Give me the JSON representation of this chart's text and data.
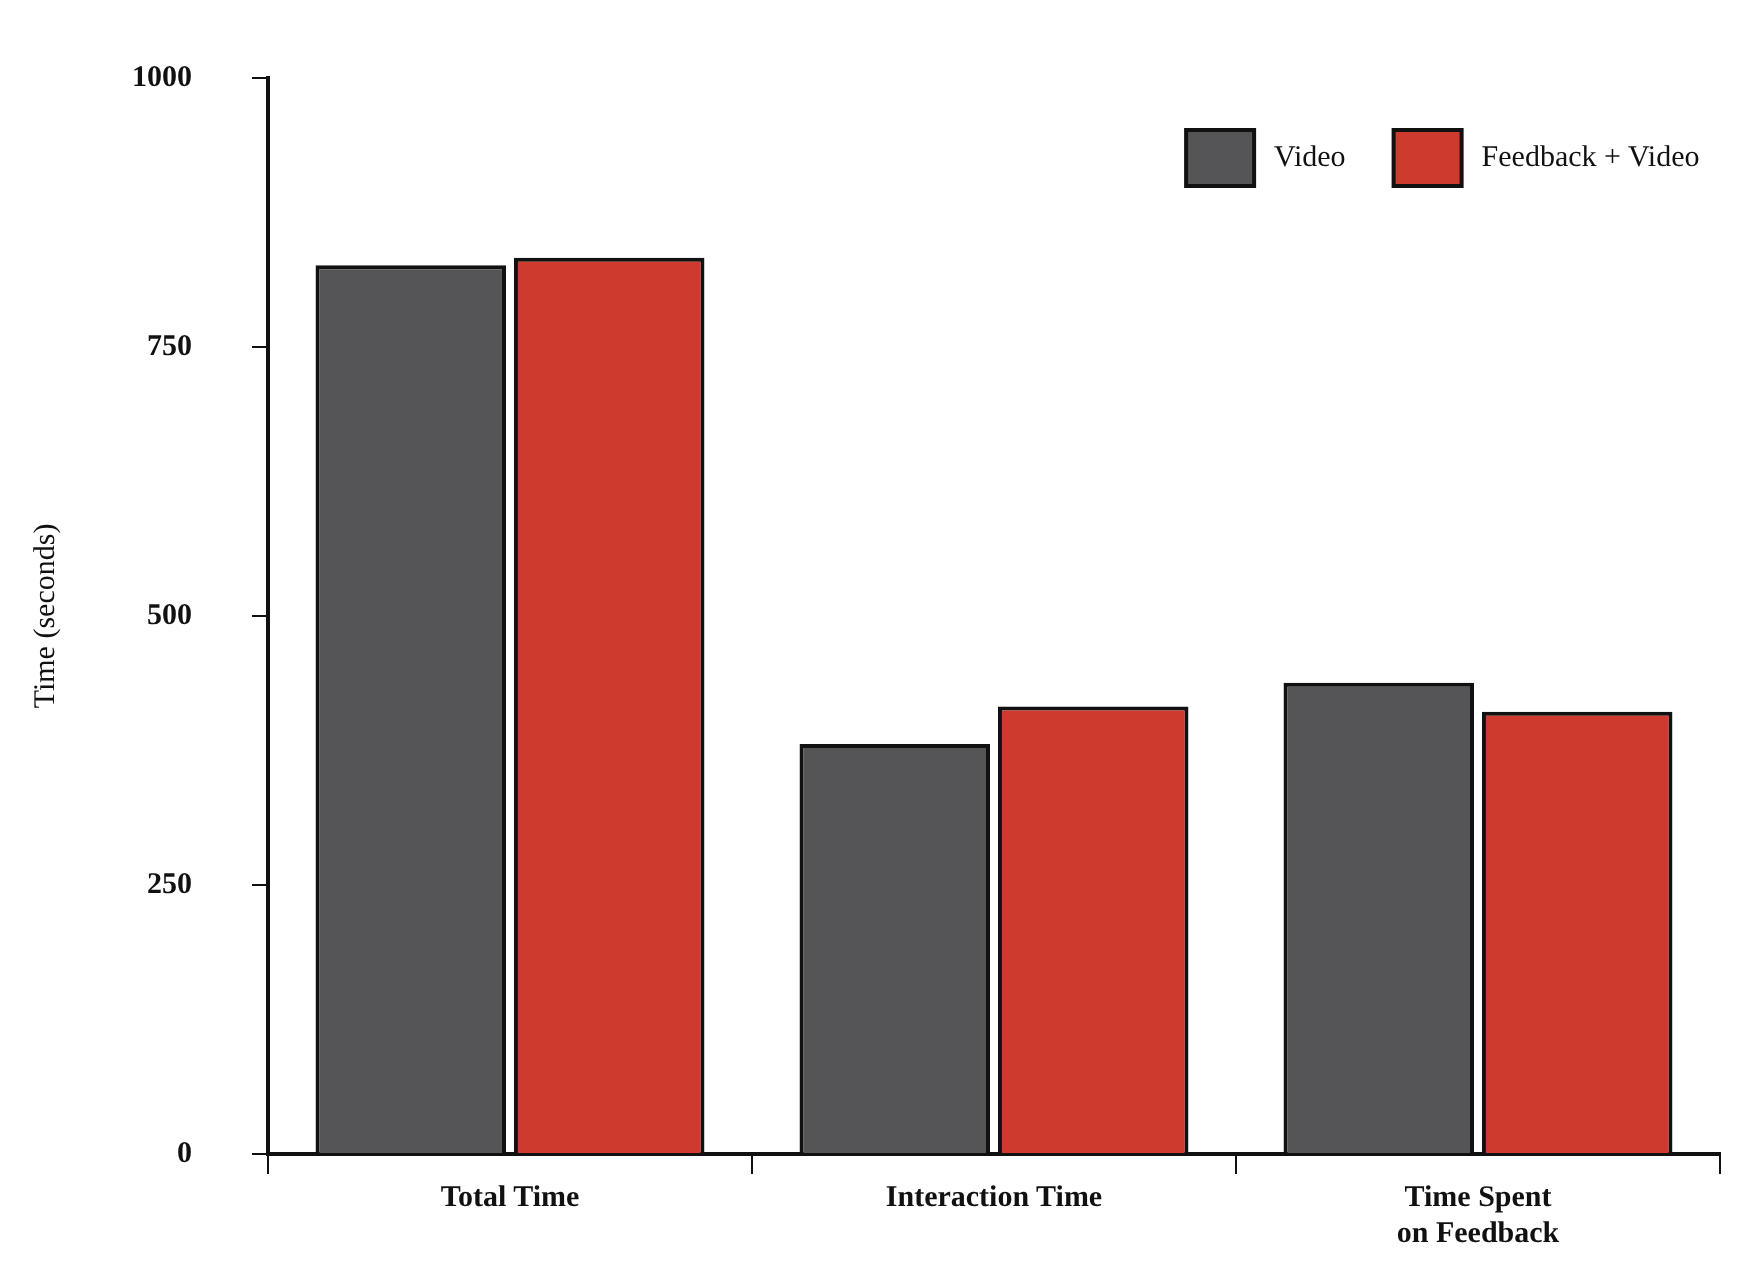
{
  "chart_data": {
    "type": "bar",
    "ylabel": "Time (seconds)",
    "categories": [
      "Total Time",
      "Interaction Time",
      "Time Spent\non Feedback"
    ],
    "series": [
      {
        "name": "Video",
        "color": "#555557",
        "values": [
          826,
          381,
          438
        ]
      },
      {
        "name": "Feedback + Video",
        "color": "#cf3a2e",
        "values": [
          833,
          416,
          411
        ]
      }
    ],
    "ylim": [
      0,
      1000
    ],
    "yticks": [
      0,
      250,
      500,
      750,
      1000
    ],
    "grid": false,
    "legend": "top right"
  }
}
